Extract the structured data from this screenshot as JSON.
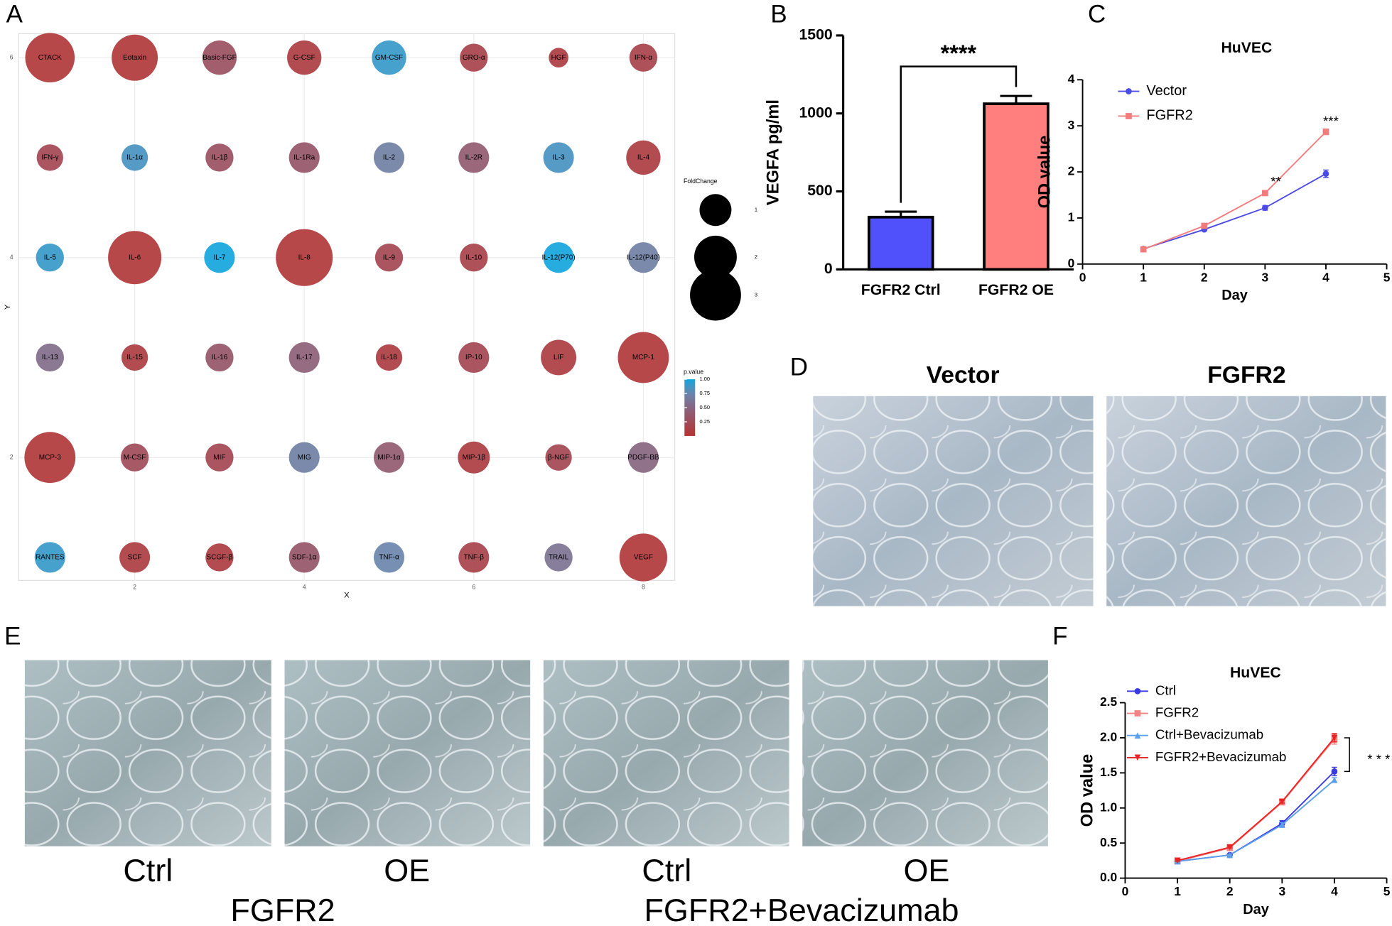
{
  "panel_labels": [
    "A",
    "B",
    "C",
    "D",
    "E",
    "F"
  ],
  "figure_d": {
    "captions": [
      "Vector",
      "FGFR2"
    ]
  },
  "figure_e": {
    "captions": [
      "Ctrl",
      "OE",
      "Ctrl",
      "OE"
    ],
    "groups": [
      "FGFR2",
      "FGFR2+Bevacizumab"
    ]
  },
  "chart_data": [
    {
      "type": "bubble",
      "x_label": "X",
      "y_label": "Y",
      "labels": [
        "CTACK",
        "Eotaxin",
        "Basic-FGF",
        "G-CSF",
        "GM-CSF",
        "GRO-α",
        "HGF",
        "IFN-α",
        "IFN-γ",
        "IL-1α",
        "IL-1β",
        "IL-1Ra",
        "IL-2",
        "IL-2R",
        "IL-3",
        "IL-4",
        "IL-5",
        "IL-6",
        "IL-7",
        "IL-8",
        "IL-9",
        "IL-10",
        "IL-12(P70)",
        "IL-12(P40)",
        "IL-13",
        "IL-15",
        "IL-16",
        "IL-17",
        "IL-18",
        "IP-10",
        "LIF",
        "MCP-1",
        "MCP-3",
        "M-CSF",
        "MIF",
        "MIG",
        "MIP-1α",
        "MIP-1β",
        "β-NGF",
        "PDGF-BB",
        "RANTES",
        "SCF",
        "SCGF-β",
        "SDF-1α",
        "TNF-α",
        "TNF-β",
        "TRAIL",
        "VEGF"
      ],
      "x": [
        1,
        2,
        3,
        4,
        5,
        6,
        7,
        8,
        1,
        2,
        3,
        4,
        5,
        6,
        7,
        8,
        1,
        2,
        3,
        4,
        5,
        6,
        7,
        8,
        1,
        2,
        3,
        4,
        5,
        6,
        7,
        8,
        1,
        2,
        3,
        4,
        5,
        6,
        7,
        8,
        1,
        2,
        3,
        4,
        5,
        6,
        7,
        8
      ],
      "y": [
        6,
        6,
        6,
        6,
        6,
        6,
        6,
        6,
        5,
        5,
        5,
        5,
        5,
        5,
        5,
        5,
        4,
        4,
        4,
        4,
        4,
        4,
        4,
        4,
        3,
        3,
        3,
        3,
        3,
        3,
        3,
        3,
        2,
        2,
        2,
        2,
        2,
        2,
        2,
        2,
        1,
        1,
        1,
        1,
        1,
        1,
        1,
        1
      ],
      "size": [
        2.8,
        2.4,
        1.2,
        1.2,
        1.2,
        0.7,
        0.2,
        0.7,
        0.6,
        0.6,
        0.7,
        0.9,
        0.9,
        0.9,
        0.9,
        1.2,
        0.7,
        3.3,
        0.9,
        3.8,
        0.7,
        0.7,
        0.9,
        0.9,
        0.7,
        0.6,
        0.7,
        0.9,
        0.6,
        0.9,
        1.3,
        3.0,
        3.0,
        0.7,
        0.7,
        0.9,
        0.9,
        1.0,
        0.6,
        0.9,
        0.9,
        0.9,
        0.7,
        0.9,
        0.9,
        0.9,
        0.7,
        2.6
      ],
      "pvalue": [
        0.05,
        0.05,
        0.3,
        0.1,
        0.9,
        0.15,
        0.1,
        0.15,
        0.2,
        0.85,
        0.3,
        0.35,
        0.7,
        0.4,
        0.85,
        0.1,
        0.9,
        0.05,
        1.0,
        0.05,
        0.2,
        0.15,
        1.0,
        0.7,
        0.55,
        0.1,
        0.35,
        0.45,
        0.1,
        0.2,
        0.1,
        0.05,
        0.05,
        0.25,
        0.2,
        0.7,
        0.4,
        0.1,
        0.2,
        0.5,
        0.9,
        0.1,
        0.1,
        0.35,
        0.75,
        0.15,
        0.6,
        0.05
      ],
      "xlim": [
        0.63,
        8.37
      ],
      "xticks": [
        2,
        4,
        6,
        8
      ],
      "ylim": [
        0.77,
        6.24
      ],
      "yticks": [
        2,
        4,
        6
      ],
      "grid": true,
      "size_legend": {
        "title": "FoldChange",
        "values": [
          1,
          2,
          3
        ]
      },
      "color_legend": {
        "title": "p.value",
        "range": [
          0,
          1
        ],
        "ticks": [
          0.25,
          {
            "value": 0.5,
            "label": "0.50"
          },
          0.75,
          {
            "value": 1,
            "label": "1.00"
          }
        ]
      },
      "colorscale": [
        [
          0,
          "#b53333"
        ],
        [
          0.45,
          "#8d5f78"
        ],
        [
          0.75,
          "#6a86ad"
        ],
        [
          1,
          "#14a5dc"
        ]
      ]
    },
    {
      "type": "bar",
      "y_label": "VEGFA pg/ml",
      "categories": [
        "FGFR2 Ctrl",
        "FGFR2 OE"
      ],
      "values": [
        335,
        1062
      ],
      "errors": [
        35,
        50
      ],
      "colors": [
        "#5151fb",
        "#ff7f7f"
      ],
      "ylim": [
        0,
        1500
      ],
      "yticks": [
        0,
        500,
        1000,
        1500
      ],
      "annotation": "****"
    },
    {
      "type": "line",
      "title": "HuVEC",
      "x_label": "Day",
      "y_label": "OD value",
      "x": [
        1,
        2,
        3,
        4
      ],
      "xlim": [
        0,
        5
      ],
      "xticks": [
        0,
        1,
        2,
        3,
        4,
        5
      ],
      "ylim": [
        0,
        4
      ],
      "yticks": [
        0,
        1,
        2,
        3,
        4
      ],
      "legend": "top-left",
      "series": [
        {
          "name": "Vector",
          "color": "#4b4be6",
          "marker": "circle",
          "values": [
            0.33,
            0.75,
            1.22,
            1.96
          ],
          "errors": [
            0.02,
            0.03,
            0.05,
            0.08
          ]
        },
        {
          "name": "FGFR2",
          "color": "#f27b7b",
          "marker": "square",
          "values": [
            0.32,
            0.83,
            1.54,
            2.87
          ],
          "errors": [
            0.02,
            0.03,
            0.04,
            0.06
          ]
        }
      ],
      "annotations": [
        "**",
        "***"
      ]
    },
    {
      "type": "line",
      "title": "HuVEC",
      "x_label": "Day",
      "y_label": "OD value",
      "x": [
        1,
        2,
        3,
        4
      ],
      "xlim": [
        0,
        5
      ],
      "xticks": [
        0,
        1,
        2,
        3,
        4,
        5
      ],
      "ylim": [
        0,
        2.5
      ],
      "yticks": [
        {
          "value": 0,
          "label": "0.0"
        },
        0.5,
        {
          "value": 1,
          "label": "1.0"
        },
        1.5,
        {
          "value": 2,
          "label": "2.0"
        },
        2.5
      ],
      "legend": "top-left",
      "series": [
        {
          "name": "Ctrl",
          "color": "#3a3ae2",
          "marker": "circle",
          "values": [
            0.24,
            0.33,
            0.78,
            1.52
          ],
          "errors": [
            0.01,
            0.01,
            0.04,
            0.06
          ]
        },
        {
          "name": "FGFR2",
          "color": "#f28383",
          "marker": "square",
          "values": [
            0.24,
            0.43,
            1.08,
            1.98
          ],
          "errors": [
            0.01,
            0.01,
            0.02,
            0.07
          ]
        },
        {
          "name": "Ctrl+Bevacizumab",
          "color": "#5b9fea",
          "marker": "triangle",
          "values": [
            0.24,
            0.33,
            0.76,
            1.4
          ],
          "errors": [
            0.01,
            0.01,
            0.03,
            0.03
          ]
        },
        {
          "name": "FGFR2+Bevacizumab",
          "color": "#e82424",
          "marker": "triangle-down",
          "values": [
            0.25,
            0.44,
            1.09,
            2.0
          ],
          "errors": [
            0.01,
            0.01,
            0.02,
            0.06
          ]
        }
      ],
      "annotations": [
        "* * *"
      ]
    }
  ]
}
